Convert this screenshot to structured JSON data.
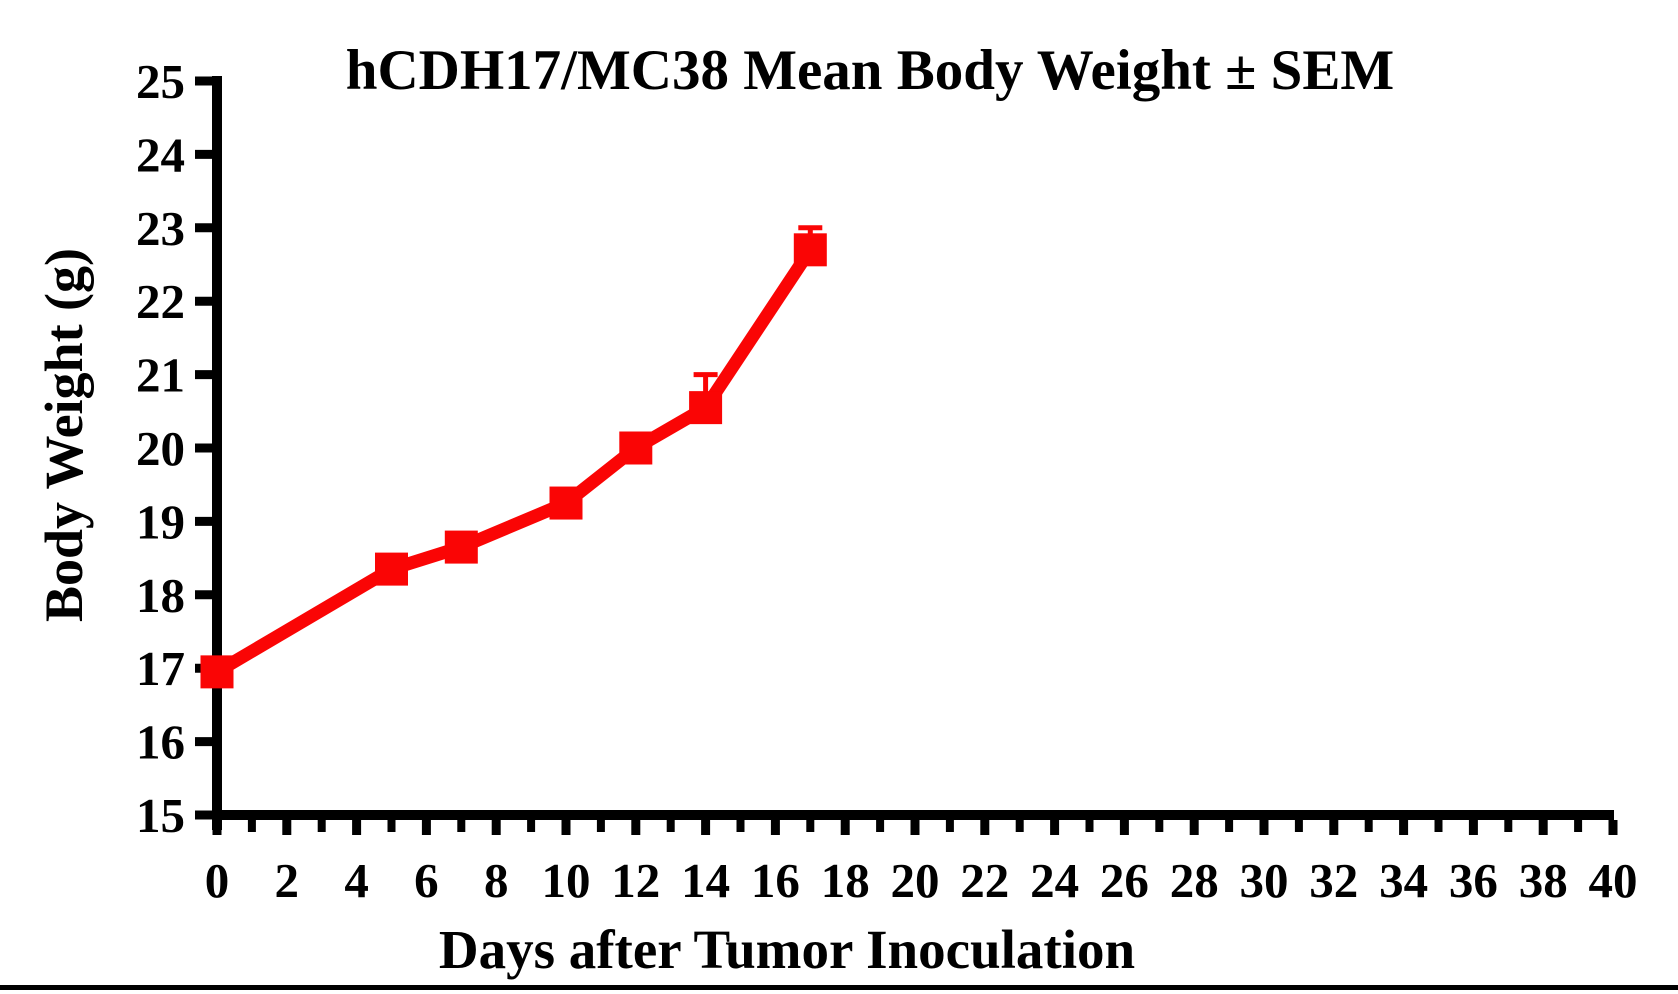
{
  "figure": {
    "background_color": "#ffffff",
    "bottom_rule_color": "#000000",
    "axis_color": "#000000"
  },
  "chart_data": {
    "type": "line",
    "title": "hCDH17/MC38 Mean Body Weight ± SEM",
    "xlabel": "Days after Tumor Inoculation",
    "ylabel": "Body Weight (g)",
    "xlim": [
      0,
      40
    ],
    "ylim": [
      15,
      25
    ],
    "x_major_tick_step": 2,
    "x_minor_tick_step": 1,
    "y_tick_step": 1,
    "x_tick_labels": [
      "0",
      "2",
      "4",
      "6",
      "8",
      "10",
      "12",
      "14",
      "16",
      "18",
      "20",
      "22",
      "24",
      "26",
      "28",
      "30",
      "32",
      "34",
      "36",
      "38",
      "40"
    ],
    "y_tick_labels": [
      "15",
      "16",
      "17",
      "18",
      "19",
      "20",
      "21",
      "22",
      "23",
      "24",
      "25"
    ],
    "grid": false,
    "legend_position": "none",
    "series": [
      {
        "name": "hCDH17/MC38 mean body weight",
        "color": "#fa0505",
        "marker": "square",
        "x": [
          0,
          5,
          7,
          10,
          12,
          14,
          17
        ],
        "y": [
          16.95,
          18.35,
          18.65,
          19.25,
          20.0,
          20.55,
          22.7
        ],
        "sem_upper": [
          0,
          0,
          0,
          0,
          0,
          0.45,
          0.3
        ]
      }
    ]
  }
}
